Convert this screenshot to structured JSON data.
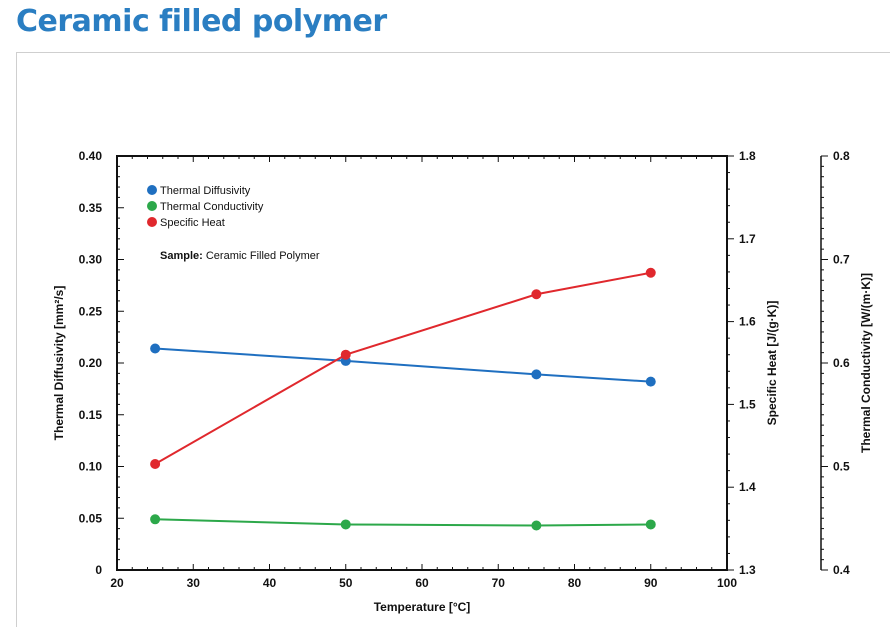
{
  "page": {
    "title": "Ceramic filled polymer"
  },
  "chart_data": {
    "type": "line",
    "x": [
      25,
      50,
      75,
      90
    ],
    "xlabel": "Temperature [°C]",
    "xlim": [
      20,
      100
    ],
    "xticks": [
      20,
      30,
      40,
      50,
      60,
      70,
      80,
      90,
      100
    ],
    "grid": false,
    "legend_position": "top-left",
    "annotation": {
      "label": "Sample:",
      "value": "Ceramic Filled Polymer"
    },
    "axes": {
      "left": {
        "label": "Thermal Diffusivity [mm²/s]",
        "range": [
          0,
          0.4
        ],
        "ticks": [
          "0",
          "0.05",
          "0.10",
          "0.15",
          "0.20",
          "0.25",
          "0.30",
          "0.35",
          "0.40"
        ]
      },
      "right": {
        "label": "Specific Heat [J/(g·K)]",
        "range": [
          1.3,
          1.8
        ],
        "ticks": [
          "1.3",
          "1.4",
          "1.5",
          "1.6",
          "1.7",
          "1.8"
        ]
      },
      "far_right": {
        "label": "Thermal Conductivity [W/(m·K)]",
        "range": [
          0.4,
          0.8
        ],
        "ticks": [
          "0.4",
          "0.5",
          "0.6",
          "0.7",
          "0.8"
        ]
      }
    },
    "series": [
      {
        "name": "Thermal Diffusivity",
        "axis": "left",
        "color": "#1f6fc0",
        "values": [
          0.214,
          0.202,
          0.189,
          0.182
        ]
      },
      {
        "name": "Thermal Conductivity",
        "axis": "far_right",
        "color": "#2ca84a",
        "values": [
          0.449,
          0.444,
          0.443,
          0.444
        ]
      },
      {
        "name": "Specific Heat",
        "axis": "right",
        "color": "#e0282d",
        "values": [
          1.428,
          1.56,
          1.633,
          1.659
        ]
      }
    ]
  }
}
